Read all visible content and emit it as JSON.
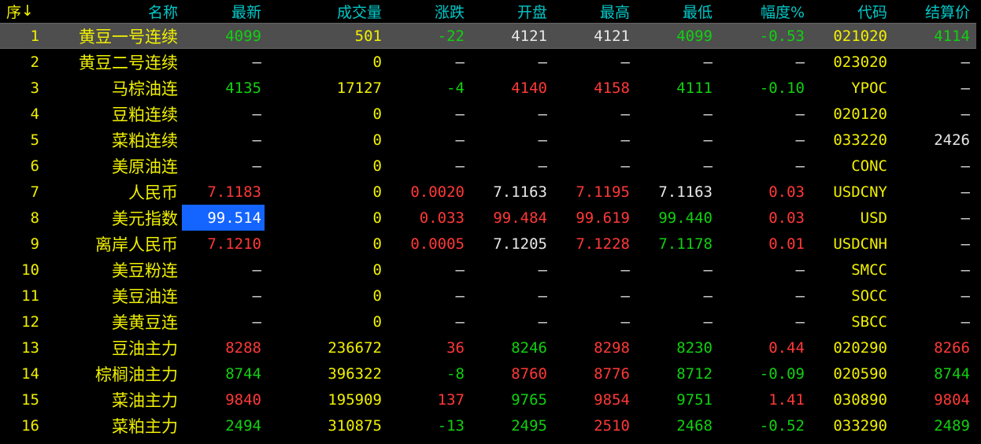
{
  "headers": [
    "序",
    "名称",
    "最新",
    "成交量",
    "涨跌",
    "开盘",
    "最高",
    "最低",
    "幅度%",
    "代码",
    "结算价"
  ],
  "sort_icon": "arrow-down-icon",
  "selected_row": 0,
  "highlight_cell": {
    "row": 7,
    "col": 2
  },
  "colors": {
    "y": "#f0f000",
    "g": "#10d010",
    "r": "#ff3838",
    "w": "#e8e8e8",
    "header": "#00c8c8",
    "highlight": "#1464ff"
  },
  "rows": [
    {
      "cells": [
        "1",
        "黄豆一号连续",
        "4099",
        "501",
        "-22",
        "4121",
        "4121",
        "4099",
        "-0.53",
        "021020",
        "4114"
      ],
      "colors": "yygygwwggyg"
    },
    {
      "cells": [
        "2",
        "黄豆二号连续",
        "—",
        "0",
        "—",
        "—",
        "—",
        "—",
        "—",
        "023020",
        "—"
      ],
      "colors": "yywywwwwwyw"
    },
    {
      "cells": [
        "3",
        "马棕油连",
        "4135",
        "17127",
        "-4",
        "4140",
        "4158",
        "4111",
        "-0.10",
        "YPOC",
        "—"
      ],
      "colors": "yygygrrggyw"
    },
    {
      "cells": [
        "4",
        "豆粕连续",
        "—",
        "0",
        "—",
        "—",
        "—",
        "—",
        "—",
        "020120",
        "—"
      ],
      "colors": "yywywwwwwyw"
    },
    {
      "cells": [
        "5",
        "菜粕连续",
        "—",
        "0",
        "—",
        "—",
        "—",
        "—",
        "—",
        "033220",
        "2426"
      ],
      "colors": "yywywwwwwyw"
    },
    {
      "cells": [
        "6",
        "美原油连",
        "—",
        "0",
        "—",
        "—",
        "—",
        "—",
        "—",
        "CONC",
        "—"
      ],
      "colors": "yywywwwwwyw"
    },
    {
      "cells": [
        "7",
        "人民币",
        "7.1183",
        "0",
        "0.0020",
        "7.1163",
        "7.1195",
        "7.1163",
        "0.03",
        "USDCNY",
        "—"
      ],
      "colors": "yyryrwrwryw"
    },
    {
      "cells": [
        "8",
        "美元指数",
        "99.514",
        "0",
        "0.033",
        "99.484",
        "99.619",
        "99.440",
        "0.03",
        "USD",
        "—"
      ],
      "colors": "yywyrrrgryw"
    },
    {
      "cells": [
        "9",
        "离岸人民币",
        "7.1210",
        "0",
        "0.0005",
        "7.1205",
        "7.1228",
        "7.1178",
        "0.01",
        "USDCNH",
        "—"
      ],
      "colors": "yyryrwrgryw"
    },
    {
      "cells": [
        "10",
        "美豆粉连",
        "—",
        "0",
        "—",
        "—",
        "—",
        "—",
        "—",
        "SMCC",
        "—"
      ],
      "colors": "yywywwwwwyw"
    },
    {
      "cells": [
        "11",
        "美豆油连",
        "—",
        "0",
        "—",
        "—",
        "—",
        "—",
        "—",
        "SOCC",
        "—"
      ],
      "colors": "yywywwwwwyw"
    },
    {
      "cells": [
        "12",
        "美黄豆连",
        "—",
        "0",
        "—",
        "—",
        "—",
        "—",
        "—",
        "SBCC",
        "—"
      ],
      "colors": "yywywwwwwyw"
    },
    {
      "cells": [
        "13",
        "豆油主力",
        "8288",
        "236672",
        "36",
        "8246",
        "8298",
        "8230",
        "0.44",
        "020290",
        "8266"
      ],
      "colors": "yyryrgrgryr"
    },
    {
      "cells": [
        "14",
        "棕榈油主力",
        "8744",
        "396322",
        "-8",
        "8760",
        "8776",
        "8712",
        "-0.09",
        "020590",
        "8744"
      ],
      "colors": "yygygrrggyg"
    },
    {
      "cells": [
        "15",
        "菜油主力",
        "9840",
        "195909",
        "137",
        "9765",
        "9854",
        "9751",
        "1.41",
        "030890",
        "9804"
      ],
      "colors": "yyryrgrgryr"
    },
    {
      "cells": [
        "16",
        "菜粕主力",
        "2494",
        "310875",
        "-13",
        "2495",
        "2510",
        "2468",
        "-0.52",
        "033290",
        "2489"
      ],
      "colors": "yygyggrggyg"
    }
  ]
}
